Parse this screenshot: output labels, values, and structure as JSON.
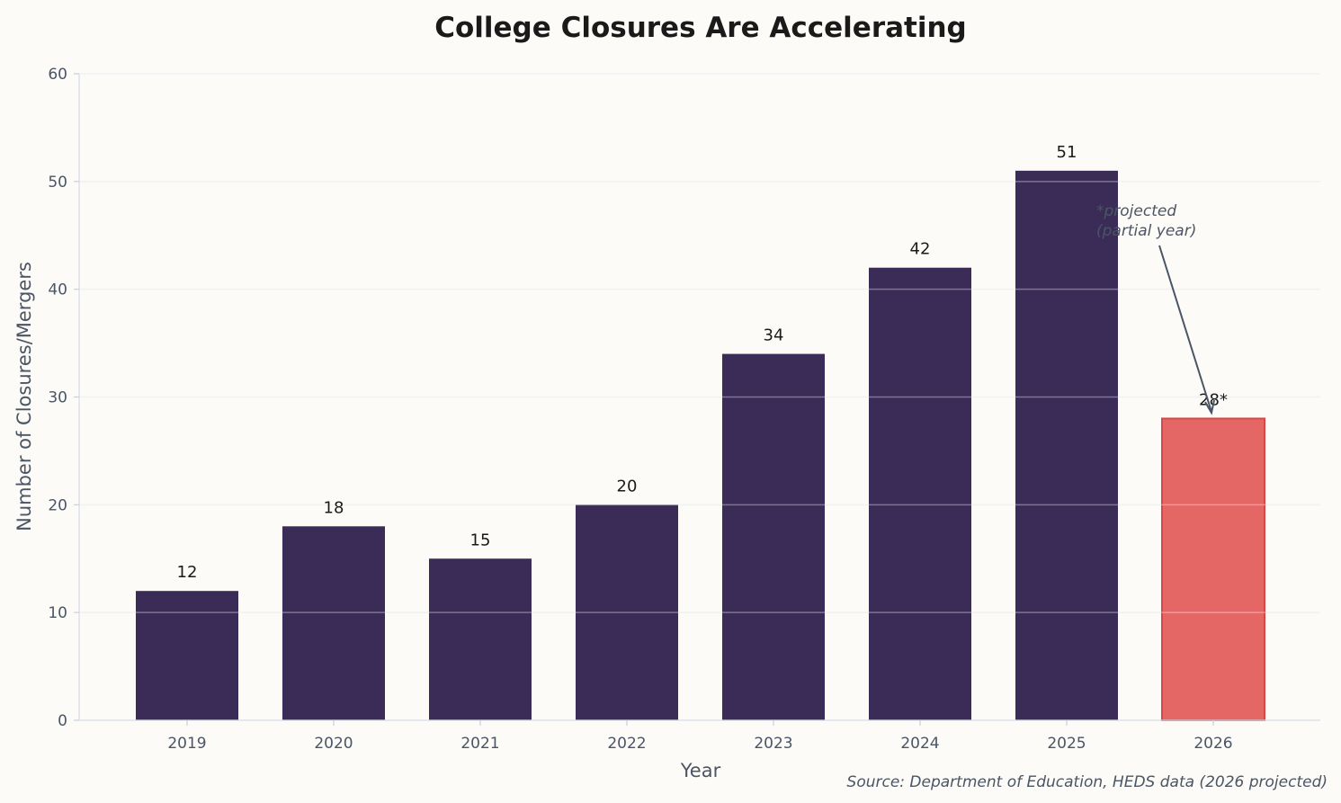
{
  "chart_data": {
    "type": "bar",
    "title": "College Closures Are Accelerating",
    "xlabel": "Year",
    "ylabel": "Number of Closures/Mergers",
    "categories": [
      "2019",
      "2020",
      "2021",
      "2022",
      "2023",
      "2024",
      "2025",
      "2026"
    ],
    "values": [
      12,
      18,
      15,
      20,
      34,
      42,
      51,
      28
    ],
    "data_labels": [
      "12",
      "18",
      "15",
      "20",
      "34",
      "42",
      "51",
      "28*"
    ],
    "ylim": [
      0,
      60
    ],
    "yticks": [
      0,
      10,
      20,
      30,
      40,
      50,
      60
    ],
    "grid": "horizontal",
    "colors": {
      "bar": "#3a2c57",
      "projected_bar": "#e46665",
      "projected_edge": "#d94646",
      "text_muted": "#4a5565",
      "background": "#fcfbf7"
    },
    "annotation": {
      "text_line1": "*projected",
      "text_line2": "(partial year)",
      "target_category": "2026"
    },
    "source": "Source: Department of Education, HEDS data (2026 projected)"
  }
}
